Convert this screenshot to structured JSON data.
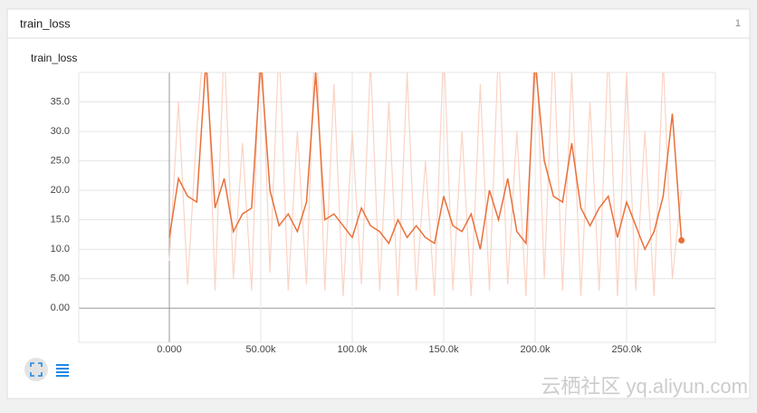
{
  "panel": {
    "title": "train_loss",
    "count": "1"
  },
  "watermark": "云栖社区 yq.aliyun.com",
  "chart_data": {
    "type": "line",
    "title": "train_loss",
    "x": [
      0,
      5000,
      10000,
      15000,
      20000,
      25000,
      30000,
      35000,
      40000,
      45000,
      50000,
      55000,
      60000,
      65000,
      70000,
      75000,
      80000,
      85000,
      90000,
      95000,
      100000,
      105000,
      110000,
      115000,
      120000,
      125000,
      130000,
      135000,
      140000,
      145000,
      150000,
      155000,
      160000,
      165000,
      170000,
      175000,
      180000,
      185000,
      190000,
      195000,
      200000,
      205000,
      210000,
      215000,
      220000,
      225000,
      230000,
      235000,
      240000,
      245000,
      250000,
      255000,
      260000,
      265000,
      270000,
      275000,
      280000
    ],
    "series": [
      {
        "color": "#fbd3c4",
        "values": [
          8,
          35,
          4,
          30,
          50,
          3,
          45,
          5,
          28,
          3,
          50,
          6,
          45,
          3,
          30,
          4,
          50,
          3,
          38,
          2,
          30,
          4,
          42,
          3,
          35,
          2,
          40,
          3,
          25,
          2,
          45,
          3,
          30,
          2,
          38,
          3,
          45,
          4,
          30,
          2,
          50,
          5,
          45,
          3,
          40,
          2,
          35,
          3,
          44,
          2,
          40,
          3,
          30,
          2,
          42,
          5,
          20
        ]
      },
      {
        "color": "#e8703a",
        "values": [
          12,
          22,
          19,
          18,
          42,
          17,
          22,
          13,
          16,
          17,
          42,
          20,
          14,
          16,
          13,
          18,
          40,
          15,
          16,
          14,
          12,
          17,
          14,
          13,
          11,
          15,
          12,
          14,
          12,
          11,
          19,
          14,
          13,
          16,
          10,
          20,
          15,
          22,
          13,
          11,
          42,
          25,
          19,
          18,
          28,
          17,
          14,
          17,
          19,
          12,
          18,
          14,
          10,
          13,
          19,
          33,
          11.5
        ]
      }
    ],
    "xlim": [
      -49500,
      298500
    ],
    "ylim": [
      -5.8,
      40
    ],
    "xticks": [
      {
        "value": 0,
        "label": "0.000"
      },
      {
        "value": 50000,
        "label": "50.00k"
      },
      {
        "value": 100000,
        "label": "100.0k"
      },
      {
        "value": 150000,
        "label": "150.0k"
      },
      {
        "value": 200000,
        "label": "200.0k"
      },
      {
        "value": 250000,
        "label": "250.0k"
      }
    ],
    "yticks": [
      {
        "value": 0,
        "label": "0.00"
      },
      {
        "value": 5,
        "label": "5.00"
      },
      {
        "value": 10,
        "label": "10.0"
      },
      {
        "value": 15,
        "label": "15.0"
      },
      {
        "value": 20,
        "label": "20.0"
      },
      {
        "value": 25,
        "label": "25.0"
      },
      {
        "value": 30,
        "label": "30.0"
      },
      {
        "value": 35,
        "label": "35.0"
      }
    ],
    "grid": true
  }
}
